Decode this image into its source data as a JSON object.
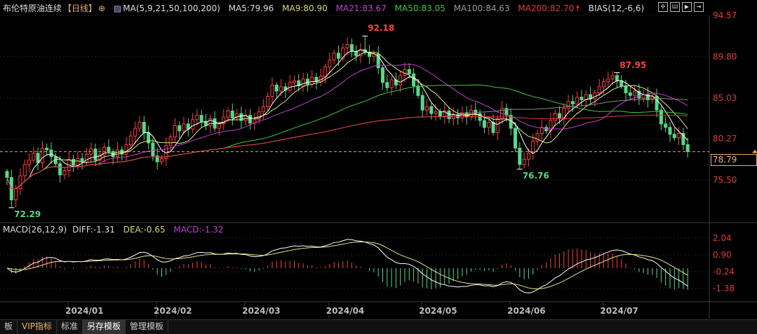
{
  "header": {
    "title": "布伦特原油连续",
    "period": "【日线】",
    "ma_label": "MA(5,9,21,50,100,200)",
    "ma5": "MA5:79.96",
    "ma9": "MA9:80.90",
    "ma21": "MA21:83.67",
    "ma50": "MA50:83.05",
    "ma100": "MA100:84.63",
    "ma200": "MA200:82.70",
    "bias": "BIAS(12,-6,6)"
  },
  "macd_header": {
    "label": "MACD(26,12,9)",
    "diff": "DIFF:-1.31",
    "dea": "DEA:-0.65",
    "macd": "MACD:-1.32"
  },
  "colors": {
    "up": "#ff3b3b",
    "down": "#54d98c",
    "ma5": "#ffffff",
    "ma9": "#e6e68a",
    "ma21": "#c040d0",
    "ma50": "#3cc83c",
    "ma100": "#8a8a8a",
    "ma200": "#e03a3a",
    "last": "#e6a05a"
  },
  "tabs": [
    "板",
    "VIP指标",
    "标准",
    "另存模板",
    "管理模板"
  ],
  "chart_data": [
    {
      "type": "candlestick",
      "price_axis": {
        "ticks": [
          "94.57",
          "89.80",
          "85.03",
          "80.27",
          "75.50"
        ],
        "range": [
          72.0,
          94.57
        ]
      },
      "last_price": "78.79",
      "annotations": [
        {
          "index": 81,
          "value": "92.18",
          "kind": "high"
        },
        {
          "index": 1,
          "value": "72.29",
          "kind": "low"
        },
        {
          "index": 116,
          "value": "76.76",
          "kind": "low"
        },
        {
          "index": 138,
          "value": "87.95",
          "kind": "high"
        }
      ],
      "date_ticks": [
        {
          "label": "2024/01",
          "index": 17
        },
        {
          "label": "2024/02",
          "index": 37
        },
        {
          "label": "2024/03",
          "index": 57
        },
        {
          "label": "2024/04",
          "index": 76
        },
        {
          "label": "2024/05",
          "index": 97
        },
        {
          "label": "2024/06",
          "index": 117
        },
        {
          "label": "2024/07",
          "index": 138
        }
      ],
      "close": [
        75.8,
        73.2,
        74.5,
        76.0,
        77.3,
        77.8,
        78.6,
        77.5,
        79.2,
        79.0,
        78.2,
        77.4,
        76.1,
        76.6,
        77.9,
        77.2,
        78.0,
        77.6,
        78.5,
        79.1,
        77.8,
        78.4,
        79.3,
        78.8,
        78.2,
        79.0,
        78.5,
        79.6,
        80.6,
        81.5,
        82.2,
        81.0,
        79.8,
        78.3,
        77.6,
        78.0,
        79.5,
        80.5,
        81.8,
        81.2,
        82.0,
        81.4,
        82.5,
        83.0,
        82.3,
        81.8,
        82.6,
        81.5,
        82.0,
        82.8,
        83.5,
        82.7,
        83.2,
        82.4,
        83.0,
        82.1,
        82.5,
        83.4,
        84.0,
        85.2,
        86.5,
        85.8,
        86.3,
        85.9,
        86.8,
        87.0,
        86.4,
        87.2,
        86.6,
        87.4,
        86.9,
        87.5,
        88.6,
        89.4,
        90.2,
        89.6,
        90.8,
        91.2,
        90.4,
        89.9,
        90.6,
        90.3,
        89.8,
        90.1,
        88.5,
        86.8,
        86.2,
        87.1,
        86.5,
        87.6,
        88.3,
        87.8,
        86.4,
        85.3,
        83.6,
        84.0,
        83.2,
        83.4,
        82.9,
        83.5,
        82.6,
        83.1,
        82.7,
        83.3,
        82.8,
        83.6,
        83.2,
        82.4,
        81.6,
        82.2,
        81.0,
        82.6,
        83.8,
        83.0,
        81.5,
        79.2,
        77.3,
        77.9,
        78.6,
        80.0,
        80.9,
        81.6,
        81.2,
        82.4,
        83.2,
        82.7,
        83.8,
        84.6,
        84.3,
        85.1,
        84.8,
        85.4,
        84.9,
        85.6,
        86.3,
        86.9,
        87.2,
        87.6,
        87.0,
        86.4,
        85.6,
        85.3,
        85.8,
        85.0,
        85.4,
        84.8,
        85.2,
        83.6,
        82.0,
        81.6,
        80.8,
        80.4,
        80.9,
        79.6,
        78.79
      ],
      "moving_averages": [
        5,
        9,
        21,
        50,
        100,
        200
      ]
    },
    {
      "type": "macd",
      "params": [
        26,
        12,
        9
      ],
      "axis_ticks": [
        "2.04",
        "0.90",
        "-0.24",
        "-1.38"
      ],
      "range": [
        -1.6,
        2.2
      ]
    }
  ]
}
